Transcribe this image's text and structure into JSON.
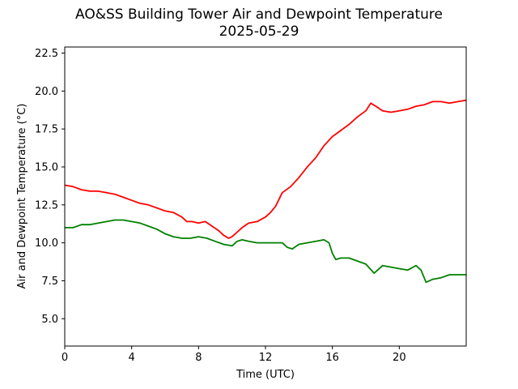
{
  "chart_data": {
    "type": "line",
    "title": "AO&SS Building Tower Air and Dewpoint Temperature",
    "subtitle": "2025-05-29",
    "xlabel": "Time (UTC)",
    "ylabel": "Air and Dewpoint Temperature (°C)",
    "xlim": [
      0,
      24
    ],
    "ylim": [
      3.2,
      22.9
    ],
    "xticks": [
      0,
      4,
      8,
      12,
      16,
      20
    ],
    "xtick_labels": [
      "0",
      "4",
      "8",
      "12",
      "16",
      "20"
    ],
    "yticks": [
      5.0,
      7.5,
      10.0,
      12.5,
      15.0,
      17.5,
      20.0,
      22.5
    ],
    "ytick_labels": [
      "5.0",
      "7.5",
      "10.0",
      "12.5",
      "15.0",
      "17.5",
      "20.0",
      "22.5"
    ],
    "grid": false,
    "series": [
      {
        "color": "#ff0000",
        "x": [
          0,
          0.5,
          1,
          1.5,
          2,
          2.5,
          3,
          3.5,
          4,
          4.5,
          5,
          5.5,
          6,
          6.5,
          7,
          7.3,
          7.6,
          8,
          8.4,
          8.8,
          9.2,
          9.5,
          9.8,
          10.0,
          10.3,
          10.6,
          11,
          11.5,
          12,
          12.3,
          12.6,
          13,
          13.5,
          14,
          14.5,
          15,
          15.5,
          16,
          16.5,
          17,
          17.5,
          18,
          18.3,
          18.6,
          19,
          19.5,
          20,
          20.5,
          21,
          21.5,
          22,
          22.5,
          23,
          23.5,
          24
        ],
        "values": [
          13.8,
          13.7,
          13.5,
          13.4,
          13.4,
          13.3,
          13.2,
          13.0,
          12.8,
          12.6,
          12.5,
          12.3,
          12.1,
          12.0,
          11.7,
          11.4,
          11.4,
          11.3,
          11.4,
          11.1,
          10.8,
          10.5,
          10.3,
          10.4,
          10.7,
          11.0,
          11.3,
          11.4,
          11.7,
          12.0,
          12.4,
          13.3,
          13.7,
          14.3,
          15.0,
          15.6,
          16.4,
          17.0,
          17.4,
          17.8,
          18.3,
          18.7,
          19.2,
          19.0,
          18.7,
          18.6,
          18.7,
          18.8,
          19.0,
          19.1,
          19.3,
          19.3,
          19.2,
          19.3,
          19.4
        ]
      },
      {
        "color": "#008000",
        "x": [
          0,
          0.5,
          1,
          1.5,
          2,
          2.5,
          3,
          3.5,
          4,
          4.5,
          5,
          5.5,
          6,
          6.5,
          7,
          7.5,
          8,
          8.5,
          9,
          9.5,
          10,
          10.3,
          10.6,
          11,
          11.5,
          12,
          12.5,
          13,
          13.3,
          13.6,
          14,
          14.5,
          15,
          15.5,
          15.8,
          16.0,
          16.2,
          16.5,
          17,
          17.5,
          18,
          18.5,
          19,
          19.5,
          20,
          20.5,
          21,
          21.3,
          21.6,
          22,
          22.5,
          23,
          23.5,
          24
        ],
        "values": [
          11.0,
          11.0,
          11.2,
          11.2,
          11.3,
          11.4,
          11.5,
          11.5,
          11.4,
          11.3,
          11.1,
          10.9,
          10.6,
          10.4,
          10.3,
          10.3,
          10.4,
          10.3,
          10.1,
          9.9,
          9.8,
          10.1,
          10.2,
          10.1,
          10.0,
          10.0,
          10.0,
          10.0,
          9.7,
          9.6,
          9.9,
          10.0,
          10.1,
          10.2,
          10.0,
          9.3,
          8.9,
          9.0,
          9.0,
          8.8,
          8.6,
          8.0,
          8.5,
          8.4,
          8.3,
          8.2,
          8.5,
          8.2,
          7.4,
          7.6,
          7.7,
          7.9,
          7.9,
          7.9
        ]
      }
    ]
  }
}
